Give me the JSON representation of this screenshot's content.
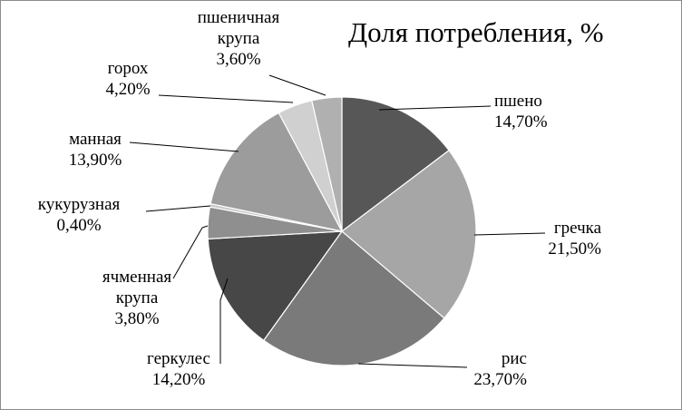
{
  "chart_data": {
    "type": "pie",
    "title": "Доля потребления,  %",
    "start": "top",
    "direction": "clockwise",
    "legend": "none",
    "slices": [
      {
        "name": [
          "пшено"
        ],
        "value": 14.7,
        "label": "14,70%",
        "color": "#575757"
      },
      {
        "name": [
          "гречка"
        ],
        "value": 21.5,
        "label": "21,50%",
        "color": "#a6a6a6"
      },
      {
        "name": [
          "рис"
        ],
        "value": 23.7,
        "label": "23,70%",
        "color": "#7a7a7a"
      },
      {
        "name": [
          "геркулес"
        ],
        "value": 14.2,
        "label": "14,20%",
        "color": "#474747"
      },
      {
        "name": [
          "ячменная",
          "крупа"
        ],
        "value": 3.8,
        "label": "3,80%",
        "color": "#8f8f8f"
      },
      {
        "name": [
          "кукурузная"
        ],
        "value": 0.4,
        "label": "0,40%",
        "color": "#c8c8c8"
      },
      {
        "name": [
          "манная"
        ],
        "value": 13.9,
        "label": "13,90%",
        "color": "#9c9c9c"
      },
      {
        "name": [
          "горох"
        ],
        "value": 4.2,
        "label": "4,20%",
        "color": "#d0d0d0"
      },
      {
        "name": [
          "пшеничная",
          "крупа"
        ],
        "value": 3.6,
        "label": "3,60%",
        "color": "#b0b0b0"
      }
    ]
  }
}
